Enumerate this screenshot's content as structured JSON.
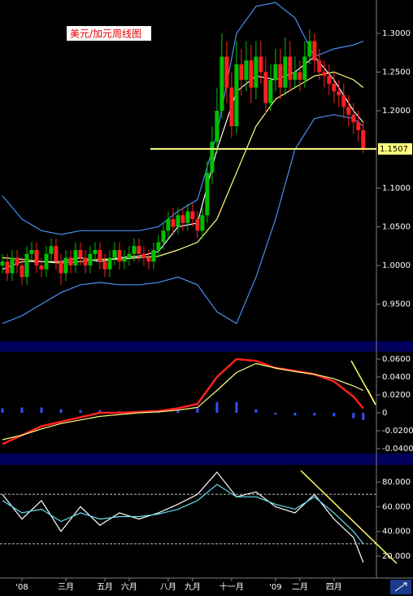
{
  "chart_data": [
    {
      "type": "candlestick",
      "title": "美元/加元周线图",
      "up_color": "#00c000",
      "down_color": "#ff2020",
      "open": [
        1.0,
        1.005,
        0.99,
        1.01,
        1.0,
        0.985,
        1.015,
        1.02,
        1.0,
        0.995,
        1.015,
        1.025,
        1.005,
        0.99,
        1.01,
        1.0,
        1.02,
        1.01,
        1.0,
        1.015,
        1.02,
        1.005,
        0.995,
        1.01,
        1.02,
        1.005,
        1.01,
        1.015,
        1.025,
        1.015,
        1.01,
        1.005,
        1.02,
        1.03,
        1.045,
        1.06,
        1.05,
        1.065,
        1.055,
        1.07,
        1.06,
        1.045,
        1.065,
        1.12,
        1.16,
        1.2,
        1.27,
        1.23,
        1.18,
        1.26,
        1.24,
        1.265,
        1.23,
        1.27,
        1.25,
        1.21,
        1.24,
        1.26,
        1.23,
        1.27,
        1.24,
        1.25,
        1.24,
        1.27,
        1.29,
        1.265,
        1.25,
        1.245,
        1.235,
        1.225,
        1.22,
        1.205,
        1.195,
        1.185,
        1.175
      ],
      "high": [
        1.015,
        1.015,
        1.02,
        1.02,
        1.01,
        1.025,
        1.03,
        1.03,
        1.01,
        1.025,
        1.035,
        1.035,
        1.015,
        1.02,
        1.02,
        1.03,
        1.03,
        1.02,
        1.025,
        1.03,
        1.03,
        1.015,
        1.02,
        1.03,
        1.03,
        1.02,
        1.025,
        1.035,
        1.035,
        1.025,
        1.02,
        1.03,
        1.04,
        1.055,
        1.07,
        1.075,
        1.075,
        1.075,
        1.08,
        1.08,
        1.07,
        1.075,
        1.135,
        1.18,
        1.23,
        1.3,
        1.29,
        1.25,
        1.29,
        1.28,
        1.29,
        1.285,
        1.29,
        1.29,
        1.27,
        1.26,
        1.28,
        1.28,
        1.295,
        1.29,
        1.27,
        1.265,
        1.29,
        1.305,
        1.3,
        1.28,
        1.265,
        1.26,
        1.25,
        1.24,
        1.235,
        1.22,
        1.21,
        1.2,
        1.185
      ],
      "low": [
        0.99,
        0.98,
        0.98,
        0.99,
        0.975,
        0.975,
        1.005,
        0.99,
        0.985,
        0.985,
        1.005,
        0.995,
        0.975,
        0.98,
        0.99,
        0.99,
        1.0,
        0.99,
        0.99,
        1.005,
        0.995,
        0.985,
        0.985,
        1.0,
        0.995,
        0.995,
        1.0,
        1.005,
        1.005,
        1.0,
        0.995,
        0.995,
        1.01,
        1.02,
        1.035,
        1.04,
        1.04,
        1.045,
        1.045,
        1.05,
        1.035,
        1.035,
        1.055,
        1.105,
        1.145,
        1.19,
        1.21,
        1.165,
        1.17,
        1.22,
        1.225,
        1.21,
        1.215,
        1.235,
        1.195,
        1.2,
        1.225,
        1.215,
        1.22,
        1.225,
        1.23,
        1.225,
        1.23,
        1.26,
        1.25,
        1.24,
        1.23,
        1.22,
        1.21,
        1.205,
        1.19,
        1.18,
        1.17,
        1.16,
        1.145
      ],
      "close": [
        1.005,
        0.99,
        1.01,
        1.0,
        0.985,
        1.015,
        1.02,
        1.0,
        0.995,
        1.015,
        1.025,
        1.005,
        0.99,
        1.01,
        1.0,
        1.02,
        1.01,
        1.0,
        1.015,
        1.02,
        1.005,
        0.995,
        1.01,
        1.02,
        1.005,
        1.01,
        1.015,
        1.025,
        1.015,
        1.01,
        1.005,
        1.02,
        1.03,
        1.045,
        1.06,
        1.05,
        1.065,
        1.055,
        1.07,
        1.06,
        1.045,
        1.065,
        1.12,
        1.16,
        1.2,
        1.27,
        1.23,
        1.18,
        1.26,
        1.24,
        1.265,
        1.23,
        1.27,
        1.25,
        1.21,
        1.24,
        1.26,
        1.23,
        1.27,
        1.24,
        1.25,
        1.24,
        1.27,
        1.29,
        1.265,
        1.25,
        1.245,
        1.235,
        1.225,
        1.22,
        1.205,
        1.195,
        1.185,
        1.175,
        1.15
      ],
      "lines": [
        {
          "color": "#4a8ff0",
          "x": [
            0,
            4,
            8,
            12,
            16,
            20,
            24,
            28,
            32,
            36,
            40,
            44,
            48,
            52,
            56,
            60,
            64,
            68,
            72,
            74
          ],
          "values": [
            1.09,
            1.06,
            1.045,
            1.04,
            1.045,
            1.045,
            1.045,
            1.045,
            1.05,
            1.07,
            1.085,
            1.17,
            1.3,
            1.335,
            1.34,
            1.32,
            1.27,
            1.28,
            1.285,
            1.29
          ]
        },
        {
          "color": "#4a8ff0",
          "x": [
            0,
            4,
            8,
            12,
            16,
            20,
            24,
            28,
            32,
            36,
            40,
            44,
            48,
            52,
            56,
            60,
            64,
            68,
            72,
            74
          ],
          "values": [
            0.925,
            0.935,
            0.95,
            0.965,
            0.975,
            0.978,
            0.975,
            0.975,
            0.978,
            0.985,
            0.975,
            0.94,
            0.925,
            0.985,
            1.06,
            1.15,
            1.19,
            1.195,
            1.19,
            1.18
          ]
        },
        {
          "color": "#ffff80",
          "x": [
            0,
            4,
            8,
            12,
            16,
            20,
            24,
            28,
            32,
            36,
            40,
            44,
            48,
            52,
            56,
            60,
            64,
            68,
            72,
            74
          ],
          "values": [
            1.01,
            1.008,
            1.005,
            1.003,
            1.005,
            1.008,
            1.008,
            1.01,
            1.012,
            1.02,
            1.03,
            1.06,
            1.12,
            1.18,
            1.215,
            1.23,
            1.245,
            1.25,
            1.24,
            1.23
          ]
        },
        {
          "color": "#ffffff",
          "x": [
            0,
            4,
            8,
            12,
            16,
            20,
            24,
            28,
            32,
            36,
            40,
            44,
            48,
            52,
            56,
            60,
            64,
            68,
            72,
            74
          ],
          "values": [
            0.995,
            1.005,
            1.005,
            1.005,
            1.01,
            1.005,
            1.01,
            1.012,
            1.018,
            1.05,
            1.055,
            1.15,
            1.225,
            1.245,
            1.24,
            1.25,
            1.27,
            1.24,
            1.2,
            1.185
          ]
        }
      ],
      "hline": {
        "value": 1.1507,
        "color": "#ffff80"
      },
      "xlim": [
        -0.5,
        76.7
      ],
      "ylim": [
        0.9032,
        1.3432
      ],
      "yticks": [
        {
          "value": 0.95,
          "label": "0.9500"
        },
        {
          "value": 1.0,
          "label": "1.0000"
        },
        {
          "value": 1.05,
          "label": "1.0500"
        },
        {
          "value": 1.1,
          "label": "1.1000"
        },
        {
          "value": 1.2,
          "label": "1.2000"
        },
        {
          "value": 1.25,
          "label": "1.2500"
        },
        {
          "value": 1.3,
          "label": "1.3000"
        }
      ]
    },
    {
      "type": "macd",
      "lines": [
        {
          "color": "#ff2020",
          "x": [
            0,
            4,
            8,
            12,
            16,
            20,
            24,
            28,
            32,
            36,
            40,
            44,
            48,
            52,
            56,
            60,
            64,
            68,
            72,
            74
          ],
          "values": [
            -0.035,
            -0.025,
            -0.015,
            -0.01,
            -0.005,
            0,
            0,
            0.001,
            0.002,
            0.005,
            0.01,
            0.04,
            0.06,
            0.058,
            0.05,
            0.047,
            0.043,
            0.035,
            0.018,
            0.005
          ]
        },
        {
          "color": "#ffff80",
          "x": [
            0,
            4,
            8,
            12,
            16,
            20,
            24,
            28,
            32,
            36,
            40,
            44,
            48,
            52,
            56,
            60,
            64,
            68,
            72,
            74
          ],
          "values": [
            -0.03,
            -0.025,
            -0.018,
            -0.012,
            -0.008,
            -0.004,
            -0.002,
            0,
            0.001,
            0.003,
            0.006,
            0.025,
            0.045,
            0.055,
            0.05,
            0.046,
            0.043,
            0.038,
            0.03,
            0.025
          ]
        }
      ],
      "histogram": {
        "color": "#3050ff",
        "x": [
          0,
          4,
          8,
          12,
          16,
          20,
          24,
          28,
          32,
          36,
          40,
          44,
          48,
          52,
          56,
          60,
          64,
          68,
          72,
          74
        ],
        "values": [
          0.005,
          0.006,
          0.006,
          0.004,
          0.003,
          0.003,
          0.002,
          0.002,
          0.002,
          0.003,
          0.005,
          0.012,
          0.012,
          0.004,
          -0.002,
          -0.003,
          -0.003,
          -0.004,
          -0.006,
          -0.008
        ]
      },
      "xlim": [
        -0.5,
        76.7
      ],
      "ylim": [
        -0.0436,
        0.0682
      ],
      "yticks": [
        {
          "value": -0.04,
          "label": "-0.0400"
        },
        {
          "value": -0.02,
          "label": "-0.0200"
        },
        0,
        {
          "value": 0.02,
          "label": "0.0200"
        },
        {
          "value": 0.04,
          "label": "0.0400"
        },
        {
          "value": 0.06,
          "label": "0.0600"
        }
      ]
    },
    {
      "type": "line",
      "lines": [
        {
          "color": "#ffffff",
          "x": [
            0,
            4,
            8,
            12,
            16,
            20,
            24,
            28,
            32,
            36,
            40,
            44,
            48,
            52,
            56,
            60,
            64,
            68,
            72,
            74
          ],
          "values": [
            70,
            50,
            65,
            40,
            60,
            45,
            55,
            50,
            55,
            62,
            70,
            88,
            68,
            72,
            60,
            55,
            70,
            50,
            35,
            15
          ]
        },
        {
          "color": "#60e0f0",
          "x": [
            0,
            4,
            8,
            12,
            16,
            20,
            24,
            28,
            32,
            36,
            40,
            44,
            48,
            52,
            56,
            60,
            64,
            68,
            72,
            74
          ],
          "values": [
            65,
            55,
            58,
            48,
            55,
            50,
            52,
            52,
            54,
            58,
            65,
            78,
            68,
            68,
            62,
            58,
            68,
            55,
            40,
            30
          ]
        }
      ],
      "levels": [
        70,
        30
      ],
      "xlim": [
        -0.5,
        76.7
      ],
      "ylim": [
        3.5,
        93.2
      ],
      "yticks": [
        {
          "value": 20,
          "label": "20.000"
        },
        {
          "value": 40,
          "label": "40.000"
        },
        {
          "value": 60,
          "label": "60.000"
        },
        {
          "value": 80,
          "label": "80.000"
        }
      ],
      "xticks": [
        {
          "value": 4,
          "label": "'08"
        },
        {
          "value": 13,
          "label": "三月"
        },
        {
          "value": 21,
          "label": "五月"
        },
        {
          "value": 26,
          "label": "六月"
        },
        {
          "value": 34,
          "label": "八月"
        },
        {
          "value": 39,
          "label": "九月"
        },
        {
          "value": 47,
          "label": "十一月"
        },
        {
          "value": 56,
          "label": "'09"
        },
        {
          "value": 61,
          "label": "二月"
        },
        {
          "value": 68,
          "label": "四月"
        }
      ]
    }
  ]
}
